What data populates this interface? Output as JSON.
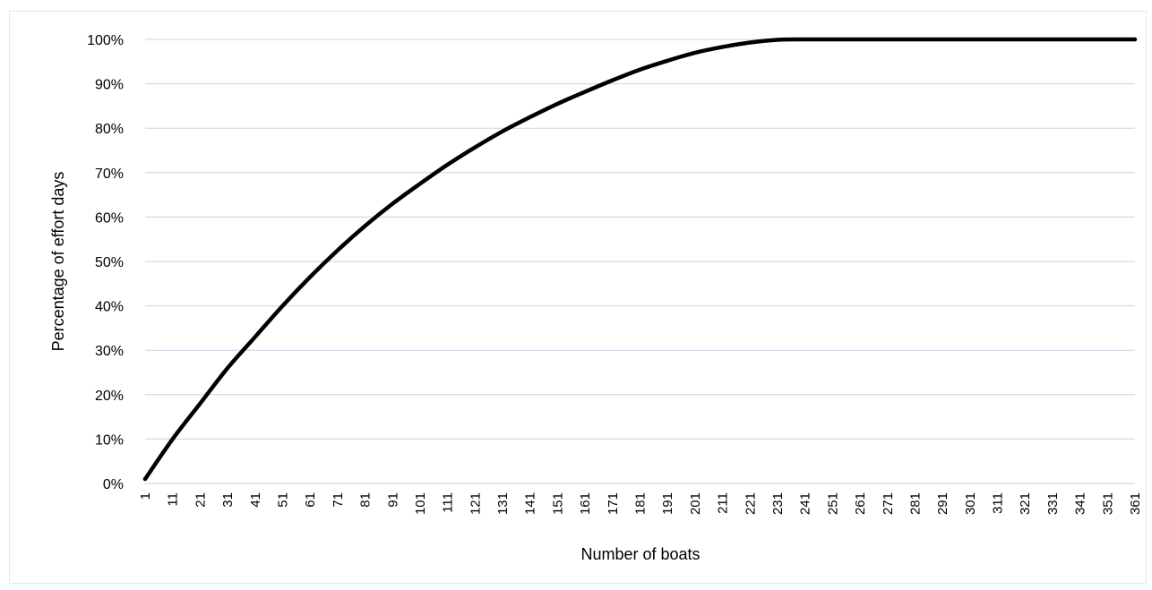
{
  "chart_data": {
    "type": "line",
    "title": "",
    "xlabel": "Number of boats",
    "ylabel": "Percentage of effort days",
    "ylim": [
      0,
      100
    ],
    "yticks": [
      "0%",
      "10%",
      "20%",
      "30%",
      "40%",
      "50%",
      "60%",
      "70%",
      "80%",
      "90%",
      "100%"
    ],
    "xticks": [
      1,
      11,
      21,
      31,
      41,
      51,
      61,
      71,
      81,
      91,
      101,
      111,
      121,
      131,
      141,
      151,
      161,
      171,
      181,
      191,
      201,
      211,
      221,
      231,
      241,
      251,
      261,
      271,
      281,
      291,
      301,
      311,
      321,
      331,
      341,
      351,
      361
    ],
    "grid": "horizontal",
    "legend": "none",
    "series": [
      {
        "color": "#000000",
        "x": [
          1,
          11,
          21,
          31,
          41,
          51,
          61,
          71,
          81,
          91,
          101,
          111,
          121,
          131,
          141,
          151,
          161,
          171,
          181,
          191,
          201,
          211,
          221,
          231,
          241,
          251,
          261,
          271,
          281,
          291,
          301,
          311,
          321,
          331,
          341,
          351,
          361
        ],
        "values": [
          1,
          10,
          18,
          26,
          33,
          40,
          46.5,
          52.5,
          58,
          63,
          67.5,
          71.8,
          75.7,
          79.3,
          82.5,
          85.5,
          88.2,
          90.8,
          93.2,
          95.2,
          97,
          98.3,
          99.3,
          99.9,
          100,
          100,
          100,
          100,
          100,
          100,
          100,
          100,
          100,
          100,
          100,
          100,
          100
        ]
      }
    ]
  },
  "colors": {
    "gridline": "#bdd7ee",
    "line": "#000000",
    "frame": "#d9eaf7"
  }
}
